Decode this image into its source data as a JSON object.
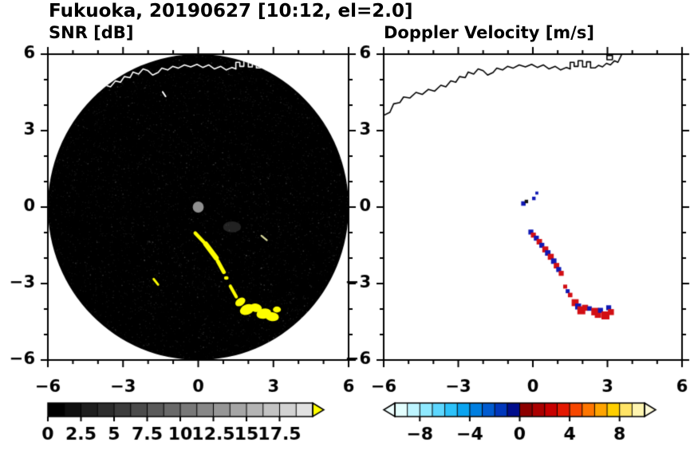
{
  "figure": {
    "title": "Fukuoka, 20190627 [10:12, el=2.0]"
  },
  "coastline": {
    "main": [
      [
        -6,
        3.6
      ],
      [
        -5.75,
        3.72
      ],
      [
        -5.6,
        4.05
      ],
      [
        -5.35,
        4.1
      ],
      [
        -5.2,
        4.32
      ],
      [
        -4.95,
        4.28
      ],
      [
        -4.7,
        4.5
      ],
      [
        -4.45,
        4.42
      ],
      [
        -4.2,
        4.62
      ],
      [
        -3.95,
        4.55
      ],
      [
        -3.7,
        4.78
      ],
      [
        -3.5,
        4.72
      ],
      [
        -3.3,
        4.95
      ],
      [
        -3.1,
        4.9
      ],
      [
        -2.95,
        5.12
      ],
      [
        -2.72,
        5.08
      ],
      [
        -2.6,
        5.3
      ],
      [
        -2.38,
        5.22
      ],
      [
        -2.2,
        5.42
      ],
      [
        -2,
        5.35
      ],
      [
        -1.82,
        5.18
      ],
      [
        -1.6,
        5.28
      ],
      [
        -1.45,
        5.45
      ],
      [
        -1.22,
        5.38
      ],
      [
        -1.02,
        5.52
      ],
      [
        -0.8,
        5.45
      ],
      [
        -0.55,
        5.58
      ],
      [
        -0.3,
        5.5
      ],
      [
        -0.05,
        5.6
      ],
      [
        0.18,
        5.48
      ],
      [
        0.42,
        5.58
      ],
      [
        0.65,
        5.42
      ],
      [
        0.9,
        5.52
      ],
      [
        1.12,
        5.38
      ],
      [
        1.35,
        5.48
      ],
      [
        1.5,
        5.42
      ]
    ],
    "port": [
      [
        1.5,
        5.42
      ],
      [
        1.5,
        5.68
      ],
      [
        1.66,
        5.68
      ],
      [
        1.66,
        5.52
      ],
      [
        1.82,
        5.52
      ],
      [
        1.82,
        5.74
      ],
      [
        2,
        5.74
      ],
      [
        2,
        5.5
      ],
      [
        2.16,
        5.5
      ],
      [
        2.16,
        5.7
      ],
      [
        2.32,
        5.7
      ],
      [
        2.32,
        5.46
      ],
      [
        2.5,
        5.46
      ],
      [
        2.64,
        5.56
      ],
      [
        2.8,
        5.5
      ],
      [
        2.96,
        5.64
      ],
      [
        3.12,
        5.58
      ],
      [
        3.28,
        5.74
      ],
      [
        3.42,
        5.68
      ],
      [
        3.52,
        5.88
      ],
      [
        3.6,
        6.05
      ]
    ],
    "island": [
      [
        2.98,
        5.78
      ],
      [
        3.2,
        5.78
      ],
      [
        3.2,
        5.95
      ],
      [
        2.98,
        5.95
      ],
      [
        2.98,
        5.78
      ]
    ]
  },
  "chart_data": [
    {
      "type": "heatmap",
      "subtype": "radar_ppi",
      "title": "SNR [dB]",
      "xlim": [
        -6,
        6
      ],
      "ylim": [
        -6,
        6
      ],
      "xticks": [
        -6,
        -3,
        0,
        3,
        6
      ],
      "xtick_labels": [
        "−6",
        "−3",
        "0",
        "3",
        "6"
      ],
      "yticks": [
        -6,
        -3,
        0,
        3,
        6
      ],
      "ytick_labels": [
        "−6",
        "−3",
        "0",
        "3",
        "6"
      ],
      "minor_tick_step": 1,
      "scan_disk_color": "#000000",
      "coast_color": "#ffffff",
      "center_dot": {
        "x": 0,
        "y": 0,
        "r": 0.22,
        "color": "#8f8f8f"
      },
      "echo_color": "#fdfd00",
      "echo_segments": [
        [
          -0.12,
          -1.02,
          0.3,
          -1.45,
          0.14
        ],
        [
          0.3,
          -1.45,
          0.72,
          -2.0,
          0.2
        ],
        [
          0.78,
          -2.12,
          1.02,
          -2.55,
          0.16
        ],
        [
          1.28,
          -3.1,
          1.52,
          -3.52,
          0.13
        ],
        [
          -1.78,
          -2.82,
          -1.6,
          -3.04,
          0.09
        ],
        [
          2.52,
          -1.12,
          2.74,
          -1.3,
          0.07,
          "#d8d89c"
        ],
        [
          -1.42,
          4.52,
          -1.3,
          4.34,
          0.06,
          "#ffffff"
        ]
      ],
      "echo_blobs": [
        [
          1.68,
          -3.72,
          0.22,
          0.15,
          -0.6
        ],
        [
          1.95,
          -4.02,
          0.3,
          0.2,
          -0.4
        ],
        [
          2.3,
          -3.95,
          0.24,
          0.17,
          0.2
        ],
        [
          2.62,
          -4.18,
          0.3,
          0.2,
          -0.2
        ],
        [
          2.95,
          -4.3,
          0.27,
          0.18,
          0.1
        ],
        [
          3.14,
          -4.02,
          0.16,
          0.12,
          0
        ],
        [
          1.12,
          -2.78,
          0.09,
          0.07,
          0
        ]
      ],
      "faint_blobs": [
        {
          "x": 1.35,
          "y": -0.78,
          "rx": 0.36,
          "ry": 0.22,
          "color": "rgba(170,170,170,0.2)"
        }
      ],
      "colorbar": {
        "range": [
          0,
          20
        ],
        "cells": 16,
        "cell_colors": [
          "#000000",
          "#0f0f0f",
          "#1e1e1e",
          "#2d2d2d",
          "#3c3c3c",
          "#4b4b4b",
          "#5a5a5a",
          "#696969",
          "#787878",
          "#878787",
          "#969696",
          "#a5a5a5",
          "#b4b4b4",
          "#c3c3c3",
          "#d2d2d2",
          "#e1e1e1"
        ],
        "tick_values": [
          0,
          2.5,
          5,
          7.5,
          10,
          12.5,
          15,
          17.5
        ],
        "tick_labels": [
          "0",
          "2.5",
          "5",
          "7.5",
          "10",
          "12.5",
          "15",
          "17.5"
        ],
        "arrow_left": false,
        "arrow_right": true,
        "arrow_right_color": "#ffff00"
      }
    },
    {
      "type": "heatmap",
      "subtype": "radar_ppi",
      "title": "Doppler Velocity [m/s]",
      "xlim": [
        -6,
        6
      ],
      "ylim": [
        -6,
        6
      ],
      "xticks": [
        -6,
        -3,
        0,
        3,
        6
      ],
      "xtick_labels": [
        "−6",
        "−3",
        "0",
        "3",
        "6"
      ],
      "yticks": [
        -6,
        -3,
        0,
        3,
        6
      ],
      "ytick_labels": [
        "−6",
        "−3",
        "0",
        "3",
        "6"
      ],
      "minor_tick_step": 1,
      "coast_color": "#000000",
      "point_colors": {
        "b": "#1018b4",
        "r": "#d20f14",
        "k": "#141414"
      },
      "points": [
        [
          -0.38,
          0.14,
          0.09,
          "b"
        ],
        [
          -0.26,
          0.22,
          0.07,
          "k"
        ],
        [
          0.04,
          0.34,
          0.07,
          "b"
        ],
        [
          0.16,
          0.55,
          0.06,
          "b"
        ],
        [
          -0.08,
          -0.98,
          0.1,
          "b"
        ],
        [
          0.02,
          -1.1,
          0.1,
          "r"
        ],
        [
          0.14,
          -1.22,
          0.1,
          "b"
        ],
        [
          0.26,
          -1.36,
          0.11,
          "r"
        ],
        [
          0.36,
          -1.5,
          0.1,
          "b"
        ],
        [
          0.5,
          -1.66,
          0.12,
          "r"
        ],
        [
          0.6,
          -1.8,
          0.11,
          "b"
        ],
        [
          0.72,
          -1.95,
          0.12,
          "r"
        ],
        [
          0.84,
          -2.12,
          0.11,
          "b"
        ],
        [
          0.95,
          -2.3,
          0.11,
          "r"
        ],
        [
          1.04,
          -2.45,
          0.1,
          "b"
        ],
        [
          1.14,
          -2.6,
          0.1,
          "r"
        ],
        [
          1.3,
          -3.12,
          0.08,
          "r"
        ],
        [
          1.4,
          -3.3,
          0.08,
          "b"
        ],
        [
          1.5,
          -3.45,
          0.09,
          "r"
        ],
        [
          1.7,
          -3.75,
          0.14,
          "r"
        ],
        [
          1.82,
          -3.9,
          0.12,
          "b"
        ],
        [
          1.95,
          -4.05,
          0.16,
          "r"
        ],
        [
          2.1,
          -3.95,
          0.12,
          "r"
        ],
        [
          2.28,
          -3.98,
          0.09,
          "b"
        ],
        [
          2.5,
          -4.1,
          0.15,
          "r"
        ],
        [
          2.62,
          -4.22,
          0.13,
          "r"
        ],
        [
          2.72,
          -4.05,
          0.1,
          "b"
        ],
        [
          2.92,
          -4.25,
          0.16,
          "r"
        ],
        [
          3.05,
          -3.95,
          0.1,
          "b"
        ],
        [
          3.14,
          -4.12,
          0.12,
          "r"
        ]
      ],
      "colorbar": {
        "range": [
          -10,
          10
        ],
        "cells": 20,
        "cell_colors": [
          "#e4ffff",
          "#bdf4ff",
          "#8fe9ff",
          "#5cd7ff",
          "#2cc2fa",
          "#0aa4f0",
          "#007fe0",
          "#005bd0",
          "#0037bc",
          "#000d8c",
          "#8c0000",
          "#ab0000",
          "#c80000",
          "#e41800",
          "#f74700",
          "#ff7600",
          "#ffa400",
          "#ffcf00",
          "#ffe466",
          "#fff5b0"
        ],
        "tick_values": [
          -8,
          -4,
          0,
          4,
          8
        ],
        "tick_labels": [
          "−8",
          "−4",
          "0",
          "4",
          "8"
        ],
        "arrow_left": true,
        "arrow_right": true,
        "arrow_left_color": "#f0ffff",
        "arrow_right_color": "#fffbda"
      }
    }
  ]
}
